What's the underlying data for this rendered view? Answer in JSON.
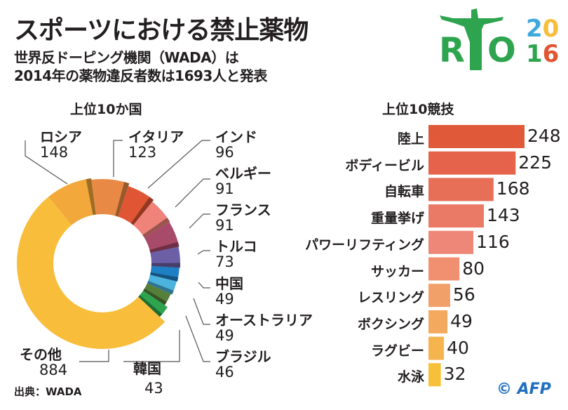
{
  "title": "スポーツにおける禁止薬物",
  "subtitle_lines": [
    "世界反ドーピング機関（WADA）は",
    "2014年の薬物違反者数は1693人と発表"
  ],
  "source": "出典：WADA",
  "credit": "© AFP",
  "logo": {
    "text": "RIO 2016",
    "r": "R",
    "o": "O",
    "y1": "20",
    "y2": "16",
    "colors": {
      "green": "#2ea44f",
      "blue": "#3ea9dd",
      "yellow": "#f8bd3a",
      "red": "#e05533"
    }
  },
  "chart_data": [
    {
      "type": "pie",
      "style": "donut",
      "title": "上位10か国",
      "categories": [
        "ロシア",
        "イタリア",
        "インド",
        "ベルギー",
        "フランス",
        "トルコ",
        "中国",
        "オーストラリア",
        "ブラジル",
        "韓国",
        "その他"
      ],
      "values": [
        148,
        123,
        96,
        91,
        91,
        73,
        49,
        49,
        46,
        43,
        884
      ],
      "colors": [
        "#f2a83a",
        "#e88a45",
        "#e05533",
        "#ef8279",
        "#a84a6a",
        "#6d5fa6",
        "#1e7fc4",
        "#4cb3dd",
        "#567f3a",
        "#2ea44f",
        "#f8bd3a"
      ]
    },
    {
      "type": "bar",
      "orientation": "horizontal",
      "title": "上位10競技",
      "categories": [
        "陸上",
        "ボディービル",
        "自転車",
        "重量挙げ",
        "パワーリフティング",
        "サッカー",
        "レスリング",
        "ボクシング",
        "ラグビー",
        "水泳"
      ],
      "values": [
        248,
        225,
        168,
        143,
        116,
        80,
        56,
        49,
        40,
        32
      ],
      "colors": [
        "#e05a3a",
        "#e4634a",
        "#e76f57",
        "#ea7a66",
        "#ef8779",
        "#f09070",
        "#f2a06a",
        "#f3aa5e",
        "#f5b44e",
        "#f8c03a"
      ]
    }
  ]
}
